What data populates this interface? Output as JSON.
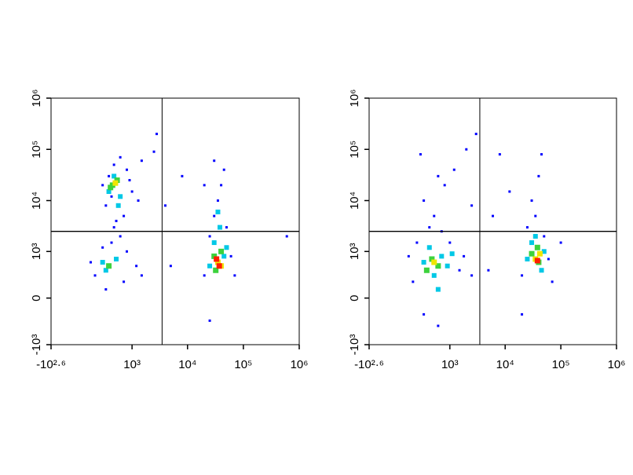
{
  "chart_data": [
    {
      "type": "scatter",
      "xlim": [
        -398,
        1000000
      ],
      "ylim": [
        -1000,
        1000000
      ],
      "xticks": [
        {
          "value": -398,
          "label": "-10²·⁶"
        },
        {
          "value": 1000,
          "label": "10³"
        },
        {
          "value": 10000,
          "label": "10⁴"
        },
        {
          "value": 100000,
          "label": "10⁵"
        },
        {
          "value": 1000000,
          "label": "10⁶"
        }
      ],
      "yticks": [
        {
          "value": -1000,
          "label": "-10³"
        },
        0,
        {
          "value": 1000,
          "label": "10³"
        },
        {
          "value": 10000,
          "label": "10⁴"
        },
        {
          "value": 100000,
          "label": "10⁵"
        },
        {
          "value": 1000000,
          "label": "10⁶"
        }
      ],
      "quadrant_gate": {
        "x": 3500,
        "y": 2500
      },
      "series": [
        {
          "color": "#0000ff",
          "x": [
            300,
            350,
            450,
            600,
            800,
            1000,
            250,
            700,
            500,
            900,
            1300,
            400,
            1500,
            2500,
            2800,
            150,
            250,
            400,
            800,
            1200,
            1500,
            100,
            300,
            700,
            600,
            450,
            20000,
            25000,
            30000,
            35000,
            40000,
            45000,
            30000,
            50000,
            60000,
            70000,
            20000,
            25000,
            5000,
            8000,
            600000,
            4000
          ],
          "y": [
            8000,
            30000,
            50000,
            70000,
            40000,
            15000,
            20000,
            5000,
            4000,
            25000,
            10000,
            12000,
            60000,
            90000,
            200000,
            300,
            1200,
            1500,
            1000,
            500,
            300,
            600,
            100,
            200,
            2000,
            3000,
            300,
            2000,
            5000,
            10000,
            20000,
            40000,
            60000,
            3000,
            800,
            300,
            20000,
            -300,
            500,
            30000,
            2000,
            8000
          ]
        },
        {
          "color": "#00c8e6",
          "x": [
            350,
            600,
            450,
            550,
            300,
            500,
            250,
            30000,
            45000,
            25000,
            38000,
            35000,
            50000
          ],
          "y": [
            15000,
            12000,
            30000,
            8000,
            400,
            700,
            600,
            1500,
            800,
            500,
            3000,
            6000,
            1200
          ]
        },
        {
          "color": "#3cd23c",
          "x": [
            420,
            520,
            380,
            350,
            30000,
            40000,
            32000
          ],
          "y": [
            20000,
            25000,
            18000,
            500,
            800,
            1000,
            400
          ]
        },
        {
          "color": "#f0e600",
          "x": [
            480,
            35000,
            40000
          ],
          "y": [
            22000,
            600,
            500
          ]
        },
        {
          "color": "#ff1e00",
          "x": [
            37000,
            33000
          ],
          "y": [
            500,
            700
          ]
        }
      ]
    },
    {
      "type": "scatter",
      "xlim": [
        -398,
        1000000
      ],
      "ylim": [
        -1000,
        1000000
      ],
      "xticks": [
        {
          "value": -398,
          "label": "-10²·⁶"
        },
        {
          "value": 1000,
          "label": "10³"
        },
        {
          "value": 10000,
          "label": "10⁴"
        },
        {
          "value": 100000,
          "label": "10⁵"
        },
        {
          "value": 1000000,
          "label": "10⁶"
        }
      ],
      "yticks": [
        {
          "value": -1000,
          "label": "-10³"
        },
        0,
        {
          "value": 1000,
          "label": "10³"
        },
        {
          "value": 10000,
          "label": "10⁴"
        },
        {
          "value": 100000,
          "label": "10⁵"
        },
        {
          "value": 1000000,
          "label": "10⁶"
        }
      ],
      "quadrant_gate": {
        "x": 3500,
        "y": 2500
      },
      "series": [
        {
          "color": "#0000ff",
          "x": [
            150,
            200,
            300,
            1000,
            1500,
            1800,
            100,
            2500,
            700,
            400,
            600,
            300,
            500,
            800,
            250,
            1200,
            2000,
            2500,
            3000,
            600,
            20000,
            25000,
            30000,
            40000,
            45000,
            50000,
            60000,
            70000,
            20000,
            35000,
            5000,
            8000,
            6000,
            12000,
            100000
          ],
          "y": [
            200,
            1500,
            -200,
            1500,
            400,
            800,
            800,
            300,
            2500,
            3000,
            -400,
            10000,
            5000,
            20000,
            80000,
            40000,
            100000,
            8000,
            200000,
            30000,
            300,
            3000,
            10000,
            30000,
            80000,
            2000,
            700,
            200,
            -200,
            5000,
            400,
            80000,
            5000,
            15000,
            1500
          ]
        },
        {
          "color": "#00c8e6",
          "x": [
            300,
            500,
            700,
            900,
            400,
            1100,
            600,
            25000,
            30000,
            45000,
            50000,
            35000
          ],
          "y": [
            600,
            300,
            800,
            500,
            1200,
            900,
            100,
            700,
            1500,
            400,
            1000,
            2000
          ]
        },
        {
          "color": "#3cd23c",
          "x": [
            450,
            600,
            350,
            30000,
            40000,
            38000
          ],
          "y": [
            700,
            500,
            400,
            900,
            600,
            1200
          ]
        },
        {
          "color": "#f0e600",
          "x": [
            500,
            35000,
            42000
          ],
          "y": [
            600,
            700,
            900
          ]
        },
        {
          "color": "#ff1e00",
          "x": [
            38000
          ],
          "y": [
            650
          ]
        }
      ]
    }
  ]
}
